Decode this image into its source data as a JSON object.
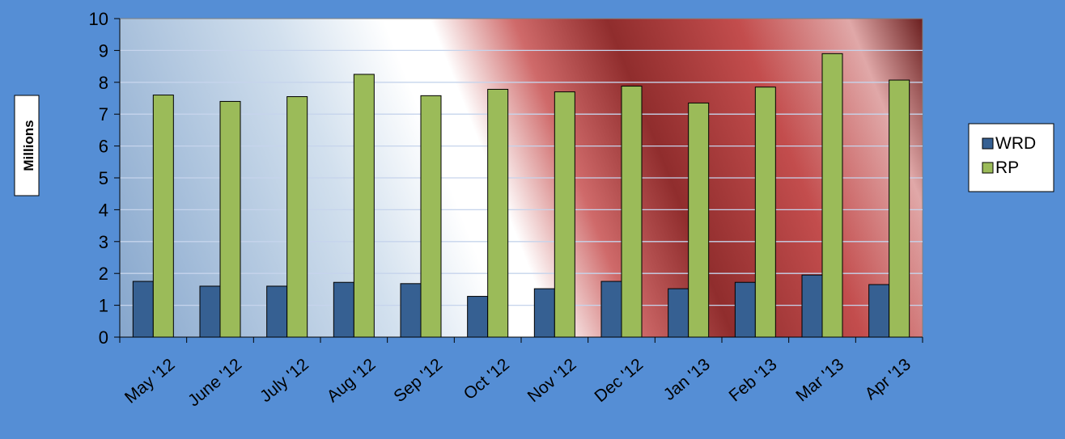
{
  "chart_data": {
    "type": "bar",
    "ylabel": "Millions",
    "ylim": [
      0,
      10
    ],
    "ytick_step": 1,
    "grid": true,
    "legend_position": "right",
    "categories": [
      "May '12",
      "June '12",
      "July '12",
      "Aug '12",
      "Sep '12",
      "Oct '12",
      "Nov '12",
      "Dec '12",
      "Jan '13",
      "Feb '13",
      "Mar '13",
      "Apr '13"
    ],
    "series": [
      {
        "name": "WRD",
        "color": "#366092",
        "values": [
          1.75,
          1.6,
          1.6,
          1.72,
          1.68,
          1.28,
          1.52,
          1.75,
          1.52,
          1.72,
          1.95,
          1.65
        ]
      },
      {
        "name": "RP",
        "color": "#9bbb59",
        "values": [
          7.6,
          7.4,
          7.55,
          8.25,
          7.58,
          7.78,
          7.7,
          7.88,
          7.35,
          7.85,
          8.9,
          8.07
        ]
      }
    ]
  },
  "colors": {
    "page_background": "#558ed5",
    "stripe_red": "#b23b3b",
    "plot_blue": "#a9c3de"
  }
}
